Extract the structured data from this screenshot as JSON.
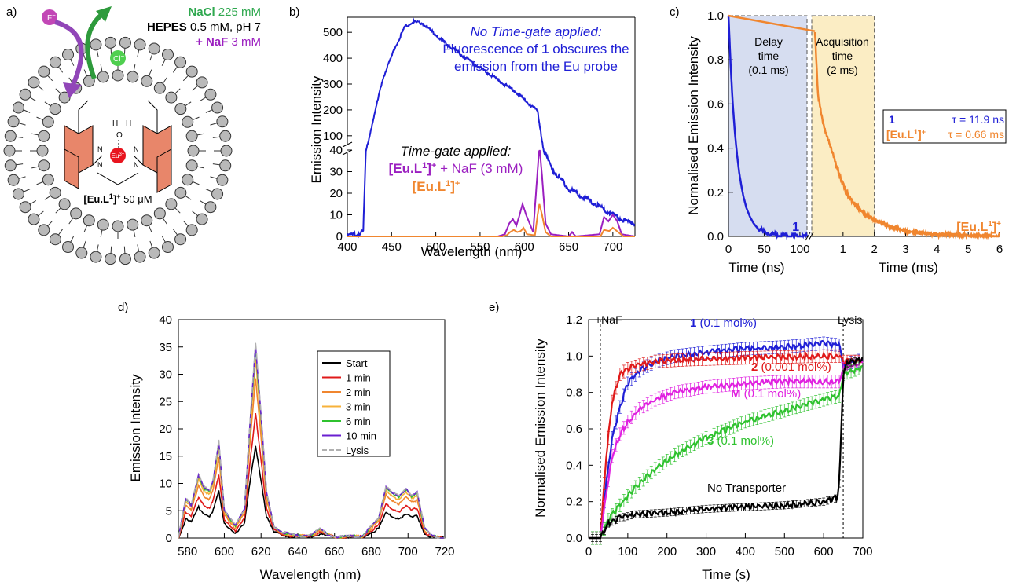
{
  "panel_labels": [
    "a)",
    "b)",
    "c)",
    "d)",
    "e)"
  ],
  "colors": {
    "blue": "#1f1fd6",
    "orange": "#f0862f",
    "purple": "#9b1fc0",
    "red": "#e01a1a",
    "green": "#2fc22f",
    "magenta": "#e020e0",
    "black": "#000000",
    "indigo": "#6a1fd0",
    "light_orange": "#f7b23a",
    "gray": "#b0b0b0",
    "delay_fill": "#d6ddf0",
    "acq_fill": "#fbedc4",
    "eu_red": "#e8141e",
    "quinoline": "#e8866a",
    "lipid_head": "#b9b9b9"
  },
  "panel_a": {
    "conditions": [
      {
        "bold": "NaCl",
        "rest": " 225 mM",
        "color": "#2fa84f"
      },
      {
        "bold": "HEPES",
        "rest": " 0.5 mM, pH 7",
        "color": "#000000"
      },
      {
        "bold": "+ NaF",
        "rest": " 3 mM",
        "color": "#9b1fc0"
      }
    ],
    "ion_f": "F",
    "ion_f_charge": "−",
    "ion_cl": "Cl",
    "ion_cl_charge": "−",
    "eu_label": "Eu",
    "eu_charge": "3+",
    "water_o": "O",
    "water_h": "H",
    "n_atom": "N",
    "complex_bold": "[Eu.L",
    "complex_sup": "1",
    "complex_close": "]",
    "complex_charge": "+",
    "complex_conc": " 50 μM",
    "icons": [
      "liposome-bilayer-icon",
      "fluoride-ion-icon",
      "chloride-ion-icon",
      "europium-complex-icon"
    ]
  },
  "chart_data": [
    {
      "type": "line",
      "panel": "b",
      "xlabel": "Wavelength (nm)",
      "ylabel": "Emission Intensity",
      "xlim": [
        400,
        725
      ],
      "x_ticks": [
        400,
        450,
        500,
        550,
        600,
        650,
        700
      ],
      "y_ticks_lower": [
        0,
        10,
        20,
        30,
        40
      ],
      "y_ticks_upper": [
        100,
        200,
        300,
        400,
        500
      ],
      "broken_y_axis": true,
      "annotation_no_gate_title": "No Time-gate applied:",
      "annotation_no_gate_line1_a": "Fluorescence of ",
      "annotation_no_gate_line1_b": "1",
      "annotation_no_gate_line1_c": " obscures the",
      "annotation_no_gate_line2": "emission from the Eu probe",
      "annotation_gate_title": "Time-gate applied:",
      "legend_purple_a": "[Eu.L",
      "legend_purple_sup": "1",
      "legend_purple_b": "]",
      "legend_purple_charge": "+",
      "legend_purple_c": " + NaF (3 mM)",
      "legend_orange_a": "[Eu.L",
      "legend_orange_sup": "1",
      "legend_orange_b": "]",
      "legend_orange_charge": "+",
      "series": [
        {
          "color": "#1f1fd6",
          "x": [
            400,
            418,
            421,
            440,
            455,
            465,
            475,
            485,
            495,
            510,
            530,
            560,
            590,
            615,
            622,
            630,
            650,
            680,
            700,
            715,
            725
          ],
          "y": [
            0,
            2,
            40,
            320,
            450,
            520,
            540,
            535,
            505,
            460,
            410,
            340,
            270,
            195,
            40,
            32,
            22,
            15,
            10,
            7,
            6
          ]
        },
        {
          "color": "#9b1fc0",
          "x": [
            400,
            570,
            578,
            583,
            587,
            591,
            594,
            598,
            602,
            610,
            614,
            617,
            620,
            624,
            630,
            650,
            654,
            658,
            685,
            690,
            695,
            700,
            705,
            710,
            725
          ],
          "y": [
            0,
            0,
            1,
            6,
            8,
            5,
            9,
            15,
            10,
            2,
            25,
            42,
            28,
            6,
            1,
            0,
            2,
            0,
            1,
            9,
            7,
            10,
            7,
            1,
            0
          ]
        },
        {
          "color": "#f0862f",
          "x": [
            400,
            575,
            580,
            584,
            588,
            592,
            596,
            599,
            603,
            612,
            615,
            617,
            620,
            624,
            630,
            686,
            690,
            696,
            700,
            706,
            712,
            725
          ],
          "y": [
            0,
            0,
            0.5,
            2,
            3,
            2,
            2.5,
            4,
            1,
            0.5,
            10,
            15,
            10,
            2,
            0,
            0,
            3,
            2.5,
            4,
            2,
            0,
            0
          ]
        }
      ]
    },
    {
      "type": "line",
      "panel": "c",
      "ylabel": "Normalised Emission Intensity",
      "left_xlabel": "Time (ns)",
      "right_xlabel": "Time (ms)",
      "left_xlim": [
        0,
        110
      ],
      "right_xlim": [
        0,
        6
      ],
      "x_ticks_left": [
        0,
        50,
        100
      ],
      "x_ticks_right": [
        1,
        2,
        3,
        4,
        5,
        6
      ],
      "y_ticks": [
        "0.0",
        "0.2",
        "0.4",
        "0.6",
        "0.8",
        "1.0"
      ],
      "delay_label_1": "Delay",
      "delay_label_2": "time",
      "delay_label_3": "(0.1 ms)",
      "acq_label_1": "Acquisition",
      "acq_label_2": "time",
      "acq_label_3": "(2 ms)",
      "legend_1_name": "1",
      "legend_1_tau": "τ = 11.9 ns",
      "legend_2_name_a": "[Eu.L",
      "legend_2_name_sup": "1",
      "legend_2_name_b": "]",
      "legend_2_name_charge": "+",
      "legend_2_tau": "τ = 0.66 ms",
      "end_label_1": "1",
      "end_label_2_a": "[Eu.L",
      "end_label_2_sup": "1",
      "end_label_2_b": "]",
      "end_label_2_charge": "+",
      "series": [
        {
          "color": "#1f1fd6",
          "x": [
            0,
            3,
            6,
            9,
            12,
            15,
            18,
            21,
            25,
            30,
            35,
            40,
            45,
            50,
            60,
            75,
            110
          ],
          "y": [
            1.0,
            0.78,
            0.6,
            0.47,
            0.37,
            0.29,
            0.23,
            0.18,
            0.13,
            0.09,
            0.06,
            0.04,
            0.03,
            0.02,
            0.01,
            0.005,
            0.0
          ]
        },
        {
          "color": "#f0862f",
          "x": [
            0,
            0.1,
            0.2,
            0.35,
            0.5,
            0.7,
            0.9,
            1.1,
            1.4,
            1.7,
            2.0,
            2.5,
            3.0,
            3.5,
            4.0,
            5.0,
            6.0
          ],
          "y": [
            1.0,
            0.93,
            0.64,
            0.52,
            0.45,
            0.36,
            0.27,
            0.2,
            0.14,
            0.1,
            0.075,
            0.045,
            0.025,
            0.015,
            0.008,
            0.003,
            0.0
          ]
        }
      ]
    },
    {
      "type": "line",
      "panel": "d",
      "xlabel": "Wavelength (nm)",
      "ylabel": "Emission Intensity",
      "xlim": [
        575,
        720
      ],
      "ylim": [
        0,
        40
      ],
      "x_ticks": [
        580,
        600,
        620,
        640,
        660,
        680,
        700,
        720
      ],
      "y_ticks": [
        0,
        5,
        10,
        15,
        20,
        25,
        30,
        35,
        40
      ],
      "legend": [
        "Start",
        "1 min",
        "2 min",
        "3 min",
        "6 min",
        "10 min",
        "Lysis"
      ],
      "legend_colors": [
        "#000000",
        "#e01a1a",
        "#f0862f",
        "#f7b23a",
        "#2fc22f",
        "#6a1fd0",
        "#b0b0b0"
      ],
      "profile_x": [
        575,
        579,
        582,
        586,
        589,
        592,
        594,
        597,
        600,
        606,
        611,
        614,
        617,
        620,
        623,
        627,
        632,
        640,
        648,
        652,
        656,
        662,
        675,
        684,
        688,
        691,
        695,
        699,
        702,
        705,
        709,
        713,
        718
      ],
      "profile_norm": [
        0,
        0.2,
        0.17,
        0.33,
        0.26,
        0.24,
        0.3,
        0.5,
        0.15,
        0.06,
        0.15,
        0.6,
        1.0,
        0.63,
        0.23,
        0.06,
        0.03,
        0.01,
        0.02,
        0.045,
        0.02,
        0.005,
        0.01,
        0.1,
        0.27,
        0.24,
        0.21,
        0.25,
        0.22,
        0.24,
        0.05,
        0.01,
        0.0
      ],
      "series_peak_values": [
        17,
        23,
        29.5,
        33,
        35,
        35.5,
        36
      ]
    },
    {
      "type": "line",
      "panel": "e",
      "xlabel": "Time (s)",
      "ylabel": "Normalised Emission Intensity",
      "xlim": [
        0,
        700
      ],
      "ylim": [
        0,
        1.2
      ],
      "x_ticks": [
        0,
        100,
        200,
        300,
        400,
        500,
        600,
        700
      ],
      "y_ticks": [
        "0.0",
        "0.2",
        "0.4",
        "0.6",
        "0.8",
        "1.0",
        "1.2"
      ],
      "event_naf_label": "+NaF",
      "event_naf_x": 30,
      "event_lysis_label": "Lysis",
      "event_lysis_x": 650,
      "series": [
        {
          "label_bold": "1",
          "label_rest": " (0.1 mol%)",
          "color": "#1f1fd6",
          "x": [
            0,
            30,
            45,
            60,
            80,
            100,
            130,
            170,
            220,
            300,
            400,
            500,
            600,
            640,
            650,
            660,
            700
          ],
          "y": [
            0,
            0,
            0.3,
            0.55,
            0.72,
            0.85,
            0.92,
            0.97,
            1.0,
            1.02,
            1.04,
            1.05,
            1.07,
            1.06,
            0.94,
            0.96,
            0.98
          ]
        },
        {
          "label_bold": "2",
          "label_rest": " (0.001 mol%)",
          "color": "#e01a1a",
          "x": [
            0,
            30,
            45,
            60,
            80,
            100,
            130,
            170,
            250,
            400,
            600,
            640,
            650,
            700
          ],
          "y": [
            0,
            0,
            0.45,
            0.75,
            0.9,
            0.93,
            0.95,
            0.97,
            0.98,
            0.99,
            1.0,
            1.0,
            0.97,
            0.97
          ]
        },
        {
          "label_bold": "M",
          "label_rest": " (0.1 mol%)",
          "color": "#e020e0",
          "x": [
            0,
            30,
            45,
            60,
            80,
            100,
            130,
            170,
            220,
            300,
            400,
            500,
            600,
            640,
            650,
            700
          ],
          "y": [
            0,
            0,
            0.25,
            0.45,
            0.57,
            0.64,
            0.71,
            0.76,
            0.8,
            0.83,
            0.85,
            0.86,
            0.86,
            0.86,
            0.93,
            0.97
          ]
        },
        {
          "label_bold": "3",
          "label_rest": " (0.1 mol%)",
          "color": "#2fc22f",
          "x": [
            0,
            30,
            50,
            80,
            120,
            170,
            230,
            300,
            400,
            500,
            600,
            640,
            650,
            700
          ],
          "y": [
            0,
            0,
            0.1,
            0.18,
            0.28,
            0.38,
            0.47,
            0.55,
            0.64,
            0.7,
            0.76,
            0.78,
            0.9,
            0.94
          ]
        },
        {
          "label_bold": "",
          "label_rest": "No Transporter",
          "color": "#000000",
          "x": [
            0,
            30,
            50,
            80,
            120,
            200,
            300,
            400,
            500,
            600,
            635,
            640,
            650,
            660,
            700
          ],
          "y": [
            0,
            0,
            0.08,
            0.11,
            0.13,
            0.14,
            0.16,
            0.17,
            0.18,
            0.2,
            0.22,
            0.3,
            0.9,
            0.96,
            0.98
          ]
        }
      ]
    }
  ]
}
